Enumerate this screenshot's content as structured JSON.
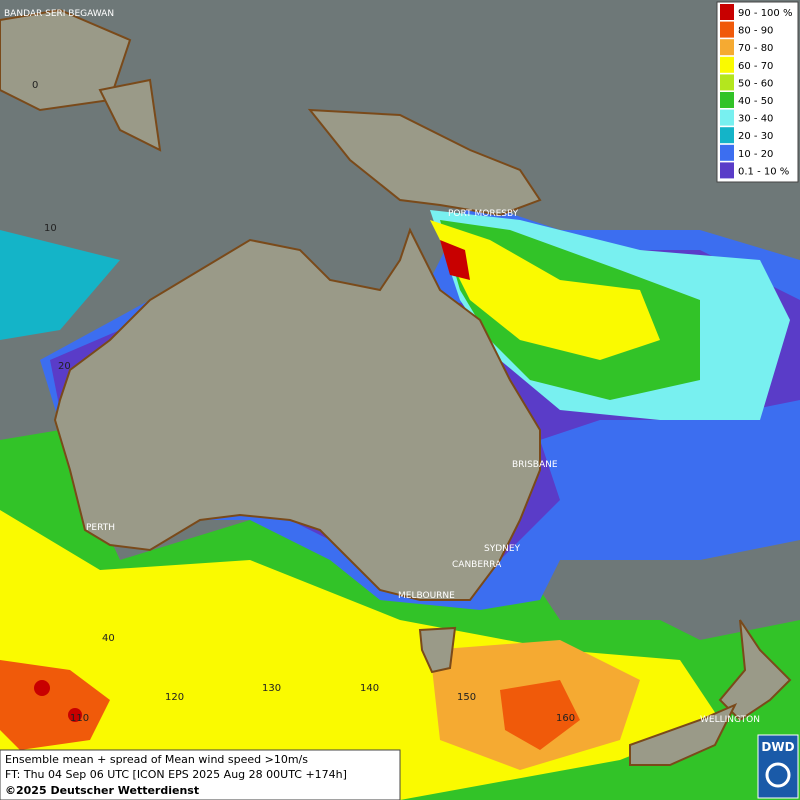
{
  "map": {
    "cities": [
      "BANDAR SERI BEGAWAN",
      "PORT MORESBY",
      "BRISBANE",
      "PERTH",
      "SYDNEY",
      "CANBERRA",
      "MELBOURNE",
      "WELLINGTON"
    ],
    "latitudes": [
      "0",
      "10",
      "20",
      "40"
    ],
    "longitudes": [
      "110",
      "120",
      "130",
      "140",
      "150",
      "160"
    ],
    "legend": [
      {
        "label": "90 - 100 %",
        "color": "#c80000"
      },
      {
        "label": "80 - 90",
        "color": "#f05a0a"
      },
      {
        "label": "70 - 80",
        "color": "#f5aa32"
      },
      {
        "label": "60 - 70",
        "color": "#fafa00"
      },
      {
        "label": "50 - 60",
        "color": "#b4e61e"
      },
      {
        "label": "40 - 50",
        "color": "#32c328"
      },
      {
        "label": "30 - 40",
        "color": "#78f0f0"
      },
      {
        "label": "20 - 30",
        "color": "#14b4c8"
      },
      {
        "label": "10 - 20",
        "color": "#3c6ef0"
      },
      {
        "label": "0.1 - 10 %",
        "color": "#5a3cc8"
      }
    ],
    "caption": [
      "Ensemble mean + spread of Mean wind speed >10m/s",
      "FT: Thu 04 Sep 06 UTC [ICON EPS 2025 Aug 28 00UTC +174h]",
      "©2025 Deutscher Wetterdienst"
    ],
    "logo": "DWD"
  }
}
